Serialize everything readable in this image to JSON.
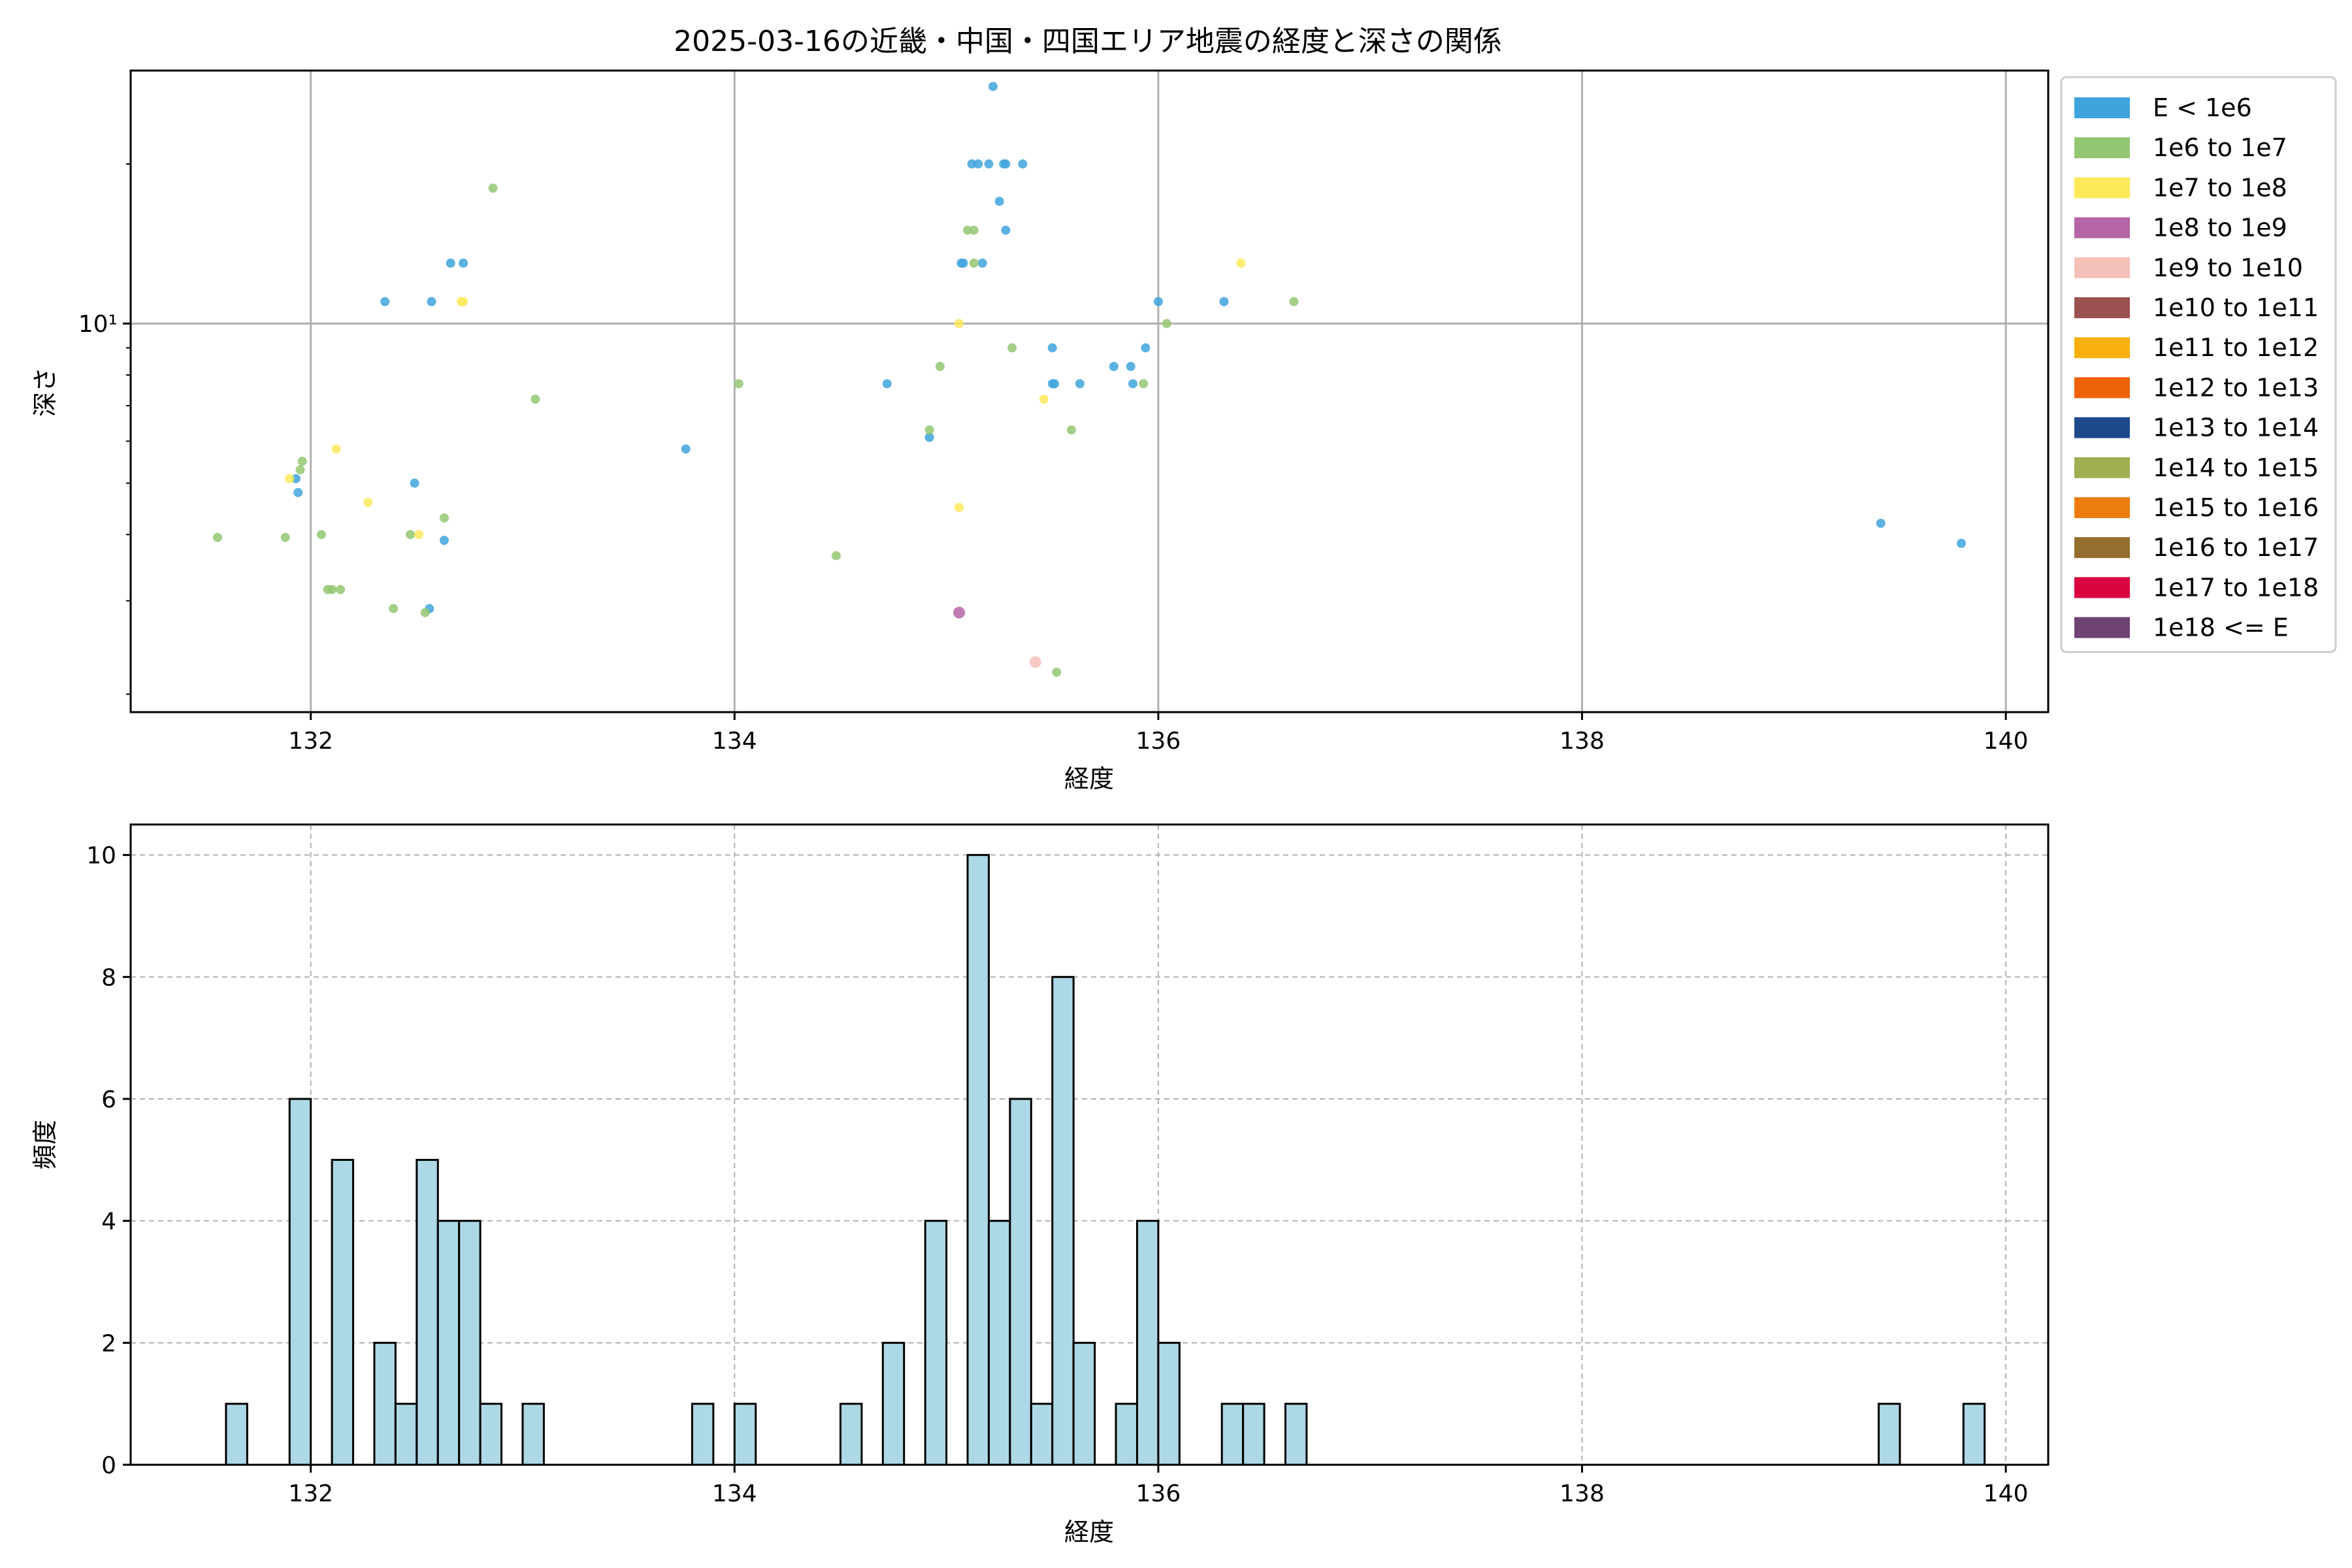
{
  "chart_data": [
    {
      "type": "scatter",
      "title": "2025-03-16の近畿・中国・四国エリア地震の経度と深さの関係",
      "xlabel": "経度",
      "ylabel": "深さ",
      "yscale": "log",
      "xlim": [
        131.15,
        140.2
      ],
      "ylim": [
        1.85,
        30
      ],
      "xticks": [
        132,
        134,
        136,
        138,
        140
      ],
      "yticks": [
        {
          "value": 10,
          "label": "10¹"
        }
      ],
      "grid": true,
      "legend": {
        "position": "right-outside",
        "entries": [
          {
            "label": "E < 1e6",
            "color": "#3fa4dc"
          },
          {
            "label": "1e6 to 1e7",
            "color": "#93c772"
          },
          {
            "label": "1e7 to 1e8",
            "color": "#fde95a"
          },
          {
            "label": "1e8 to 1e9",
            "color": "#b565a6"
          },
          {
            "label": "1e9 to 1e10",
            "color": "#f5c0b8"
          },
          {
            "label": "1e10 to 1e11",
            "color": "#9a514f"
          },
          {
            "label": "1e11 to 1e12",
            "color": "#f7b00e"
          },
          {
            "label": "1e12 to 1e13",
            "color": "#ee6209"
          },
          {
            "label": "1e13 to 1e14",
            "color": "#1c4a8c"
          },
          {
            "label": "1e14 to 1e15",
            "color": "#9daf51"
          },
          {
            "label": "1e15 to 1e16",
            "color": "#ed7d0f"
          },
          {
            "label": "1e16 to 1e17",
            "color": "#946e2d"
          },
          {
            "label": "1e17 to 1e18",
            "color": "#d90440"
          },
          {
            "label": "1e18 <= E",
            "color": "#6e4273"
          }
        ]
      },
      "series": [
        {
          "class": 0,
          "points": [
            [
              135.22,
              28
            ],
            [
              135.12,
              20
            ],
            [
              135.15,
              20
            ],
            [
              135.2,
              20
            ],
            [
              135.27,
              20
            ],
            [
              135.28,
              20
            ],
            [
              135.36,
              20
            ],
            [
              135.25,
              17
            ],
            [
              135.28,
              15
            ],
            [
              135.07,
              13
            ],
            [
              135.08,
              13
            ],
            [
              135.17,
              13
            ],
            [
              132.66,
              13
            ],
            [
              132.72,
              13
            ],
            [
              132.35,
              11
            ],
            [
              132.57,
              11
            ],
            [
              136.0,
              11
            ],
            [
              136.31,
              11
            ],
            [
              135.5,
              9
            ],
            [
              135.94,
              9
            ],
            [
              135.79,
              8.3
            ],
            [
              135.87,
              8.3
            ],
            [
              134.72,
              7.7
            ],
            [
              135.5,
              7.7
            ],
            [
              135.51,
              7.7
            ],
            [
              135.63,
              7.7
            ],
            [
              135.88,
              7.7
            ],
            [
              134.92,
              6.1
            ],
            [
              133.77,
              5.8
            ],
            [
              131.93,
              5.1
            ],
            [
              131.94,
              4.8
            ],
            [
              132.49,
              5.0
            ],
            [
              132.63,
              3.9
            ],
            [
              132.56,
              2.9
            ],
            [
              139.41,
              4.2
            ],
            [
              139.79,
              3.85
            ]
          ]
        },
        {
          "class": 1,
          "points": [
            [
              132.86,
              18
            ],
            [
              135.1,
              15
            ],
            [
              135.13,
              15
            ],
            [
              135.13,
              13
            ],
            [
              136.64,
              11
            ],
            [
              136.04,
              10
            ],
            [
              135.31,
              9
            ],
            [
              134.97,
              8.3
            ],
            [
              135.93,
              7.7
            ],
            [
              134.02,
              7.7
            ],
            [
              133.06,
              7.2
            ],
            [
              134.92,
              6.3
            ],
            [
              135.59,
              6.3
            ],
            [
              131.96,
              5.5
            ],
            [
              131.95,
              5.3
            ],
            [
              132.63,
              4.3
            ],
            [
              132.47,
              4.0
            ],
            [
              132.05,
              4.0
            ],
            [
              131.56,
              3.95
            ],
            [
              131.88,
              3.95
            ],
            [
              134.48,
              3.65
            ],
            [
              132.08,
              3.15
            ],
            [
              132.1,
              3.15
            ],
            [
              132.14,
              3.15
            ],
            [
              132.39,
              2.9
            ],
            [
              132.54,
              2.85
            ],
            [
              135.52,
              2.2
            ]
          ]
        },
        {
          "class": 2,
          "points": [
            [
              136.39,
              13
            ],
            [
              132.71,
              11
            ],
            [
              132.72,
              11
            ],
            [
              135.06,
              10
            ],
            [
              135.46,
              7.2
            ],
            [
              131.9,
              5.1
            ],
            [
              132.12,
              5.8
            ],
            [
              132.27,
              4.6
            ],
            [
              132.51,
              4.0
            ],
            [
              135.06,
              4.5
            ]
          ]
        },
        {
          "class": 3,
          "points": [
            [
              135.06,
              2.85
            ]
          ]
        },
        {
          "class": 4,
          "points": [
            [
              135.42,
              2.3
            ]
          ]
        }
      ]
    },
    {
      "type": "bar",
      "subtype": "histogram",
      "xlabel": "経度",
      "ylabel": "頻度",
      "xlim": [
        131.15,
        140.2
      ],
      "ylim": [
        0,
        10.5
      ],
      "xticks": [
        132,
        134,
        136,
        138,
        140
      ],
      "yticks": [
        0,
        2,
        4,
        6,
        8,
        10
      ],
      "grid": true,
      "bar_color": "#add8e6",
      "edge_color": "#000000",
      "bin_width": 0.1,
      "bins": [
        [
          131.6,
          1
        ],
        [
          131.9,
          6
        ],
        [
          132.1,
          5
        ],
        [
          132.3,
          2
        ],
        [
          132.4,
          1
        ],
        [
          132.5,
          5
        ],
        [
          132.6,
          4
        ],
        [
          132.7,
          4
        ],
        [
          132.8,
          1
        ],
        [
          133.0,
          1
        ],
        [
          133.8,
          1
        ],
        [
          134.0,
          1
        ],
        [
          134.5,
          1
        ],
        [
          134.7,
          2
        ],
        [
          134.9,
          4
        ],
        [
          135.1,
          10
        ],
        [
          135.2,
          4
        ],
        [
          135.3,
          6
        ],
        [
          135.4,
          1
        ],
        [
          135.5,
          8
        ],
        [
          135.6,
          2
        ],
        [
          135.8,
          1
        ],
        [
          135.9,
          4
        ],
        [
          136.0,
          2
        ],
        [
          136.3,
          1
        ],
        [
          136.4,
          1
        ],
        [
          136.6,
          1
        ],
        [
          139.4,
          1
        ],
        [
          139.8,
          1
        ]
      ]
    }
  ]
}
